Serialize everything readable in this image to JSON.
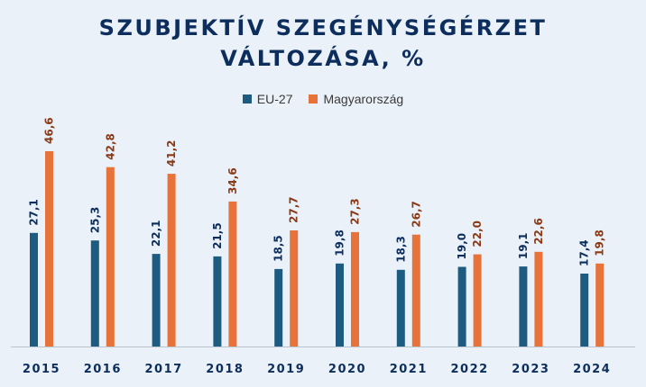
{
  "title_line1": "SZUBJEKTÍV SZEGÉNYSÉGÉRZET",
  "title_line2": "VÁLTOZÁSA, %",
  "chart_data": {
    "type": "bar",
    "title": "SZUBJEKTÍV SZEGÉNYSÉGÉRZET VÁLTOZÁSA, %",
    "categories": [
      "2015",
      "2016",
      "2017",
      "2018",
      "2019",
      "2020",
      "2021",
      "2022",
      "2023",
      "2024"
    ],
    "series": [
      {
        "name": "EU-27",
        "color": "#1d5c80",
        "label_color": "#0d2e5c",
        "values": [
          27.1,
          25.3,
          22.1,
          21.5,
          18.5,
          19.8,
          18.3,
          19.0,
          19.1,
          17.4
        ],
        "labels": [
          "27,1",
          "25,3",
          "22,1",
          "21,5",
          "18,5",
          "19,8",
          "18,3",
          "19,0",
          "19,1",
          "17,4"
        ]
      },
      {
        "name": "Magyarország",
        "color": "#e8733a",
        "label_color": "#8a3a16",
        "values": [
          46.6,
          42.8,
          41.2,
          34.6,
          27.7,
          27.3,
          26.7,
          22.0,
          22.6,
          19.8
        ],
        "labels": [
          "46,6",
          "42,8",
          "41,2",
          "34,6",
          "27,7",
          "27,3",
          "26,7",
          "22,0",
          "22,6",
          "19,8"
        ]
      }
    ],
    "ylim": [
      0,
      46.6
    ],
    "xlabel": "",
    "ylabel": "",
    "grid": false,
    "legend_position": "top-center",
    "data_labels": "rotated above bars"
  }
}
